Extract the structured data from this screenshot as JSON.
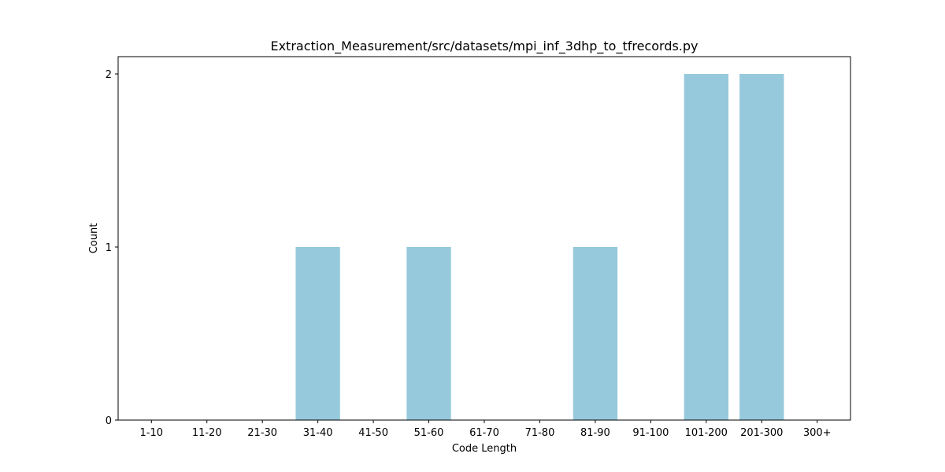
{
  "chart_data": {
    "type": "bar",
    "title": "Extraction_Measurement/src/datasets/mpi_inf_3dhp_to_tfrecords.py",
    "xlabel": "Code Length",
    "ylabel": "Count",
    "categories": [
      "1-10",
      "11-20",
      "21-30",
      "31-40",
      "41-50",
      "51-60",
      "61-70",
      "71-80",
      "81-90",
      "91-100",
      "101-200",
      "201-300",
      "300+"
    ],
    "values": [
      0,
      0,
      0,
      1,
      0,
      1,
      0,
      0,
      1,
      0,
      2,
      2,
      0
    ],
    "ylim": [
      0,
      2.1
    ],
    "yticks": [
      0,
      1,
      2
    ],
    "bar_color": "#96c9dc",
    "grid": false,
    "legend": "none"
  }
}
